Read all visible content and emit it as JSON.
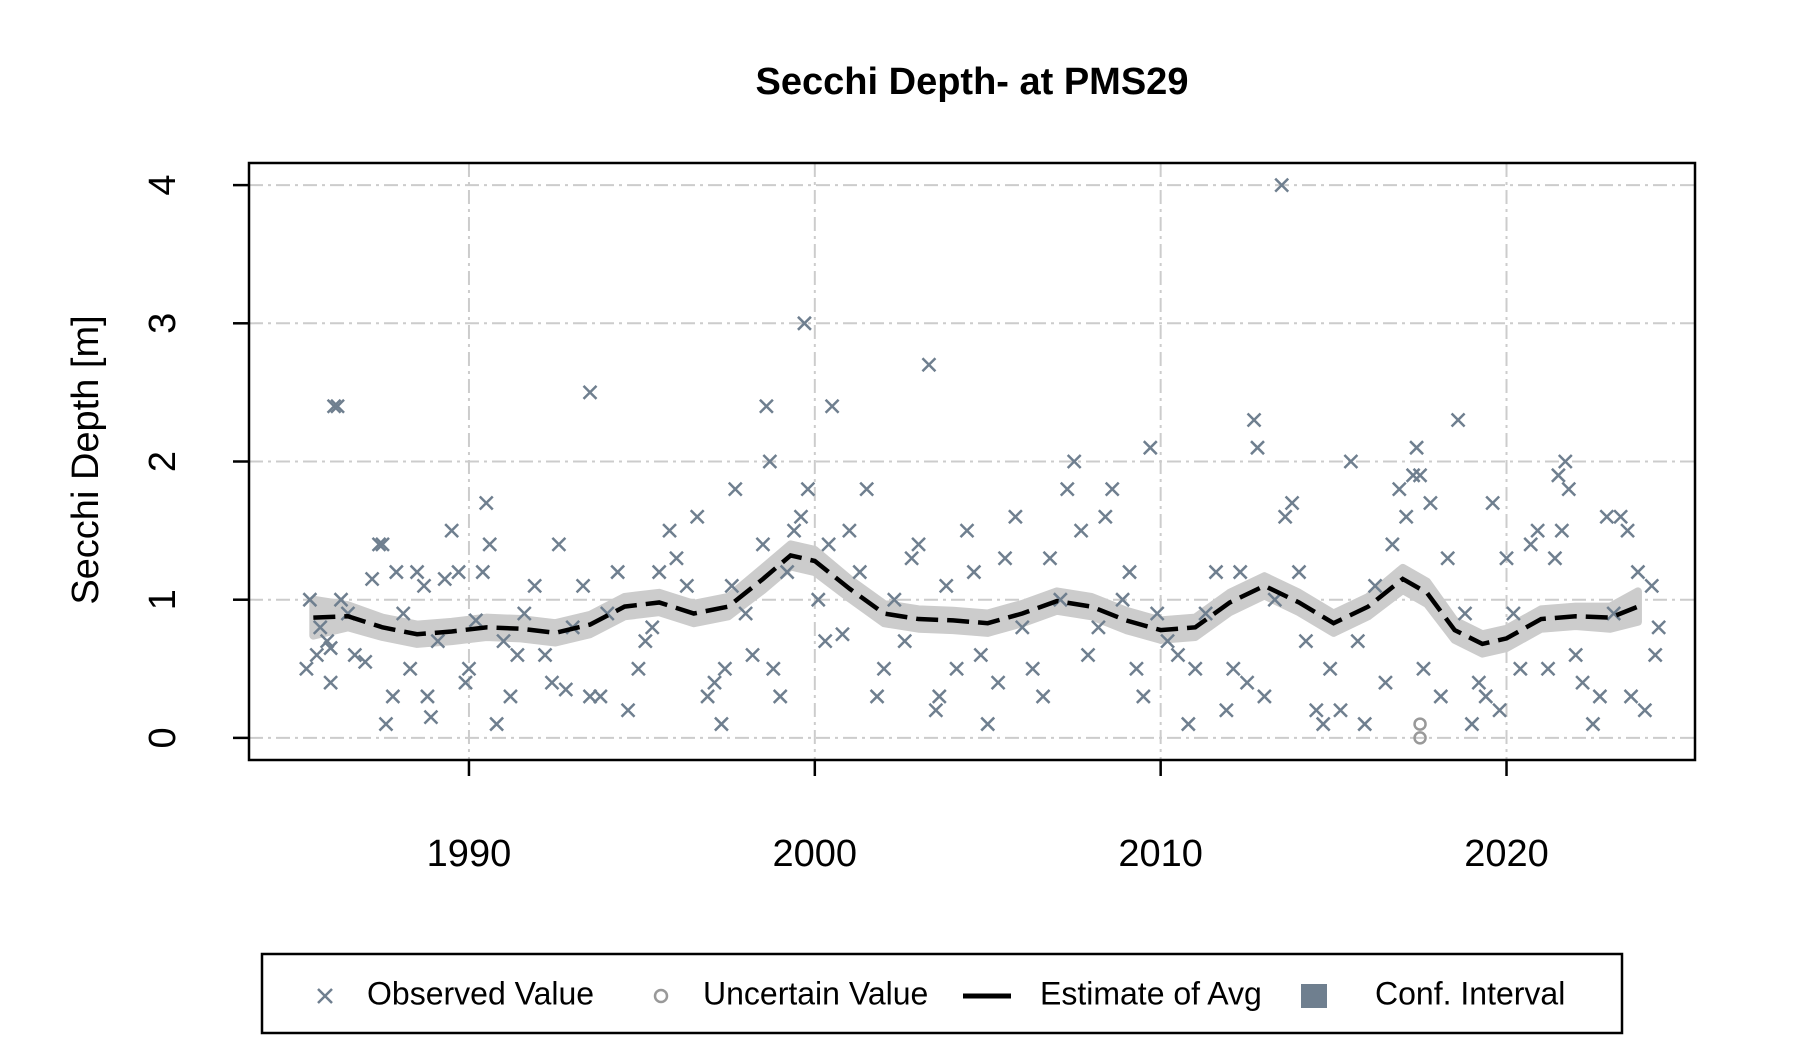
{
  "chart_data": {
    "type": "scatter",
    "title": "Secchi Depth- at PMS29",
    "y_label": "Secchi Depth [m]",
    "xlim": [
      1983.64,
      2025.45
    ],
    "ylim": [
      -0.16,
      4.16
    ],
    "xticks": [
      1990,
      2000,
      2010,
      2020
    ],
    "yticks": [
      0,
      1,
      2,
      3,
      4
    ],
    "grid": true,
    "legend": "bottom",
    "series": [
      {
        "name": "Observed Value",
        "kind": "points",
        "color": "#6f7f8f",
        "x": [
          1985.3,
          1985.4,
          1985.6,
          1985.7,
          1985.9,
          1986.0,
          1986.1,
          1986.2,
          1986.3,
          1986.0,
          1986.5,
          1986.7,
          1987.0,
          1987.2,
          1987.4,
          1987.5,
          1987.6,
          1987.8,
          1987.9,
          1988.1,
          1988.3,
          1988.5,
          1988.7,
          1988.8,
          1988.9,
          1989.1,
          1989.3,
          1989.5,
          1989.7,
          1989.9,
          1990.0,
          1990.2,
          1990.4,
          1990.5,
          1990.6,
          1990.8,
          1991.0,
          1991.2,
          1991.4,
          1991.6,
          1991.9,
          1992.2,
          1992.4,
          1992.6,
          1992.8,
          1993.0,
          1993.3,
          1993.5,
          1993.5,
          1993.8,
          1994.0,
          1994.3,
          1994.6,
          1994.9,
          1995.1,
          1995.3,
          1995.5,
          1995.8,
          1996.0,
          1996.3,
          1996.6,
          1996.9,
          1997.1,
          1997.3,
          1997.4,
          1997.6,
          1997.7,
          1998.0,
          1998.2,
          1998.5,
          1998.6,
          1998.7,
          1998.8,
          1999.0,
          1999.2,
          1999.4,
          1999.6,
          1999.7,
          1999.8,
          2000.1,
          2000.3,
          2000.4,
          2000.5,
          2000.8,
          2001.0,
          2001.3,
          2001.5,
          2001.8,
          2002.0,
          2002.3,
          2002.6,
          2002.8,
          2003.0,
          2003.3,
          2003.5,
          2003.6,
          2003.8,
          2004.1,
          2004.4,
          2004.6,
          2004.8,
          2005.0,
          2005.3,
          2005.5,
          2005.8,
          2006.0,
          2006.3,
          2006.6,
          2006.8,
          2007.1,
          2007.3,
          2007.5,
          2007.7,
          2007.9,
          2008.2,
          2008.4,
          2008.6,
          2008.9,
          2009.1,
          2009.3,
          2009.5,
          2009.7,
          2009.9,
          2010.2,
          2010.5,
          2010.8,
          2011.0,
          2011.3,
          2011.6,
          2011.9,
          2012.1,
          2012.3,
          2012.5,
          2012.7,
          2012.8,
          2013.0,
          2013.3,
          2013.5,
          2013.6,
          2013.8,
          2014.0,
          2014.2,
          2014.5,
          2014.7,
          2014.9,
          2015.2,
          2015.5,
          2015.7,
          2015.9,
          2016.2,
          2016.5,
          2016.7,
          2016.9,
          2017.1,
          2017.3,
          2017.4,
          2017.5,
          2017.6,
          2017.8,
          2018.1,
          2018.3,
          2018.6,
          2018.8,
          2019.0,
          2019.2,
          2019.4,
          2019.6,
          2019.8,
          2020.0,
          2020.2,
          2020.4,
          2020.7,
          2020.9,
          2021.2,
          2021.4,
          2021.5,
          2021.6,
          2021.7,
          2021.8,
          2022.0,
          2022.2,
          2022.5,
          2022.7,
          2022.9,
          2023.1,
          2023.3,
          2023.5,
          2023.6,
          2023.8,
          2024.0,
          2024.2,
          2024.3,
          2024.4
        ],
        "values": [
          0.5,
          1.0,
          0.6,
          0.8,
          0.7,
          0.65,
          2.4,
          2.4,
          1.0,
          0.4,
          0.9,
          0.6,
          0.55,
          1.15,
          1.4,
          1.4,
          0.1,
          0.3,
          1.2,
          0.9,
          0.5,
          1.2,
          1.1,
          0.3,
          0.15,
          0.7,
          1.15,
          1.5,
          1.2,
          0.4,
          0.5,
          0.85,
          1.2,
          1.7,
          1.4,
          0.1,
          0.7,
          0.3,
          0.6,
          0.9,
          1.1,
          0.6,
          0.4,
          1.4,
          0.35,
          0.8,
          1.1,
          2.5,
          0.3,
          0.3,
          0.9,
          1.2,
          0.2,
          0.5,
          0.7,
          0.8,
          1.2,
          1.5,
          1.3,
          1.1,
          1.6,
          0.3,
          0.4,
          0.1,
          0.5,
          1.1,
          1.8,
          0.9,
          0.6,
          1.4,
          2.4,
          2.0,
          0.5,
          0.3,
          1.2,
          1.5,
          1.6,
          3.0,
          1.8,
          1.0,
          0.7,
          1.4,
          2.4,
          0.75,
          1.5,
          1.2,
          1.8,
          0.3,
          0.5,
          1.0,
          0.7,
          1.3,
          1.4,
          2.7,
          0.2,
          0.3,
          1.1,
          0.5,
          1.5,
          1.2,
          0.6,
          0.1,
          0.4,
          1.3,
          1.6,
          0.8,
          0.5,
          0.3,
          1.3,
          1.0,
          1.8,
          2.0,
          1.5,
          0.6,
          0.8,
          1.6,
          1.8,
          1.0,
          1.2,
          0.5,
          0.3,
          2.1,
          0.9,
          0.7,
          0.6,
          0.1,
          0.5,
          0.9,
          1.2,
          0.2,
          0.5,
          1.2,
          0.4,
          2.3,
          2.1,
          0.3,
          1.0,
          4.0,
          1.6,
          1.7,
          1.2,
          0.7,
          0.2,
          0.1,
          0.5,
          0.2,
          2.0,
          0.7,
          0.1,
          1.1,
          0.4,
          1.4,
          1.8,
          1.6,
          1.9,
          2.1,
          1.9,
          0.5,
          1.7,
          0.3,
          1.3,
          2.3,
          0.9,
          0.1,
          0.4,
          0.3,
          1.7,
          0.2,
          1.3,
          0.9,
          0.5,
          1.4,
          1.5,
          0.5,
          1.3,
          1.9,
          1.5,
          2.0,
          1.8,
          0.6,
          0.4,
          0.1,
          0.3,
          1.6,
          0.9,
          1.6,
          1.5,
          0.3,
          1.2,
          0.2,
          1.1,
          0.6,
          0.8
        ]
      },
      {
        "name": "Uncertain Value",
        "kind": "circles",
        "color": "#999999",
        "x": [
          2017.5,
          2017.5
        ],
        "values": [
          0.1,
          0.0
        ]
      },
      {
        "name": "Estimate of Avg",
        "kind": "line",
        "color": "#000000",
        "x": [
          1985.5,
          1986.5,
          1987.5,
          1988.5,
          1989.5,
          1990.5,
          1991.5,
          1992.5,
          1993.5,
          1994.5,
          1995.5,
          1996.5,
          1997.5,
          1998.5,
          1999.3,
          2000,
          2001,
          2002,
          2003,
          2004,
          2005,
          2006,
          2007,
          2008,
          2009,
          2010,
          2011,
          2012,
          2013,
          2014,
          2015,
          2016,
          2017,
          2017.7,
          2018.5,
          2019.3,
          2020,
          2021,
          2022,
          2023,
          2023.8
        ],
        "values": [
          0.87,
          0.88,
          0.8,
          0.75,
          0.77,
          0.8,
          0.79,
          0.76,
          0.82,
          0.95,
          0.98,
          0.9,
          0.95,
          1.15,
          1.32,
          1.28,
          1.08,
          0.9,
          0.86,
          0.85,
          0.83,
          0.9,
          0.99,
          0.95,
          0.85,
          0.78,
          0.8,
          0.98,
          1.1,
          0.98,
          0.83,
          0.95,
          1.15,
          1.05,
          0.78,
          0.68,
          0.72,
          0.86,
          0.88,
          0.87,
          0.95
        ]
      },
      {
        "name": "Conf. Interval",
        "kind": "band",
        "color": "#cccccc",
        "legend_color": "#6f7f8f",
        "x": [
          1985.5,
          1986.5,
          1987.5,
          1988.5,
          1989.5,
          1990.5,
          1991.5,
          1992.5,
          1993.5,
          1994.5,
          1995.5,
          1996.5,
          1997.5,
          1998.5,
          1999.3,
          2000,
          2001,
          2002,
          2003,
          2004,
          2005,
          2006,
          2007,
          2008,
          2009,
          2010,
          2011,
          2012,
          2013,
          2014,
          2015,
          2016,
          2017,
          2017.7,
          2018.5,
          2019.3,
          2020,
          2021,
          2022,
          2023,
          2023.8
        ],
        "lower": [
          0.74,
          0.8,
          0.73,
          0.68,
          0.7,
          0.73,
          0.72,
          0.69,
          0.75,
          0.88,
          0.91,
          0.83,
          0.88,
          1.07,
          1.24,
          1.2,
          1.01,
          0.83,
          0.79,
          0.78,
          0.76,
          0.83,
          0.92,
          0.88,
          0.78,
          0.71,
          0.73,
          0.91,
          1.03,
          0.91,
          0.76,
          0.88,
          1.07,
          0.97,
          0.71,
          0.61,
          0.65,
          0.79,
          0.81,
          0.79,
          0.84
        ],
        "upper": [
          1.0,
          0.96,
          0.87,
          0.82,
          0.84,
          0.87,
          0.86,
          0.83,
          0.89,
          1.02,
          1.05,
          0.97,
          1.02,
          1.23,
          1.4,
          1.36,
          1.15,
          0.97,
          0.93,
          0.92,
          0.9,
          0.97,
          1.06,
          1.02,
          0.92,
          0.85,
          0.87,
          1.05,
          1.17,
          1.05,
          0.9,
          1.02,
          1.23,
          1.13,
          0.85,
          0.75,
          0.79,
          0.93,
          0.95,
          0.95,
          1.06
        ]
      }
    ]
  }
}
